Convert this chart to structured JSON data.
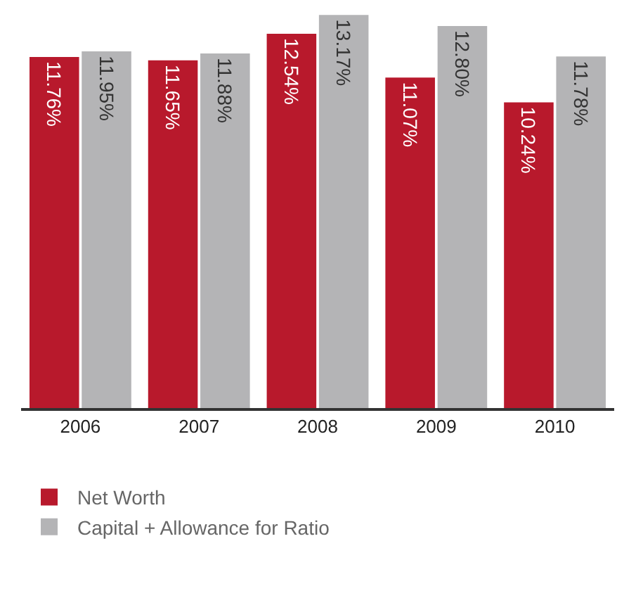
{
  "chart_data": {
    "type": "bar",
    "categories": [
      "2006",
      "2007",
      "2008",
      "2009",
      "2010"
    ],
    "series": [
      {
        "name": "Net Worth",
        "color": "#b8192c",
        "values": [
          11.76,
          11.65,
          12.54,
          11.07,
          10.24
        ],
        "value_labels": [
          "11.76%",
          "11.65%",
          "12.54%",
          "11.07%",
          "10.24%"
        ]
      },
      {
        "name": "Capital + Allowance for Ratio",
        "color": "#b4b4b6",
        "values": [
          11.95,
          11.88,
          13.17,
          12.8,
          11.78
        ],
        "value_labels": [
          "11.95%",
          "11.88%",
          "13.17%",
          "12.80%",
          "11.78%"
        ]
      }
    ],
    "ylim": [
      0,
      13.2
    ],
    "legend": "bottom left"
  }
}
